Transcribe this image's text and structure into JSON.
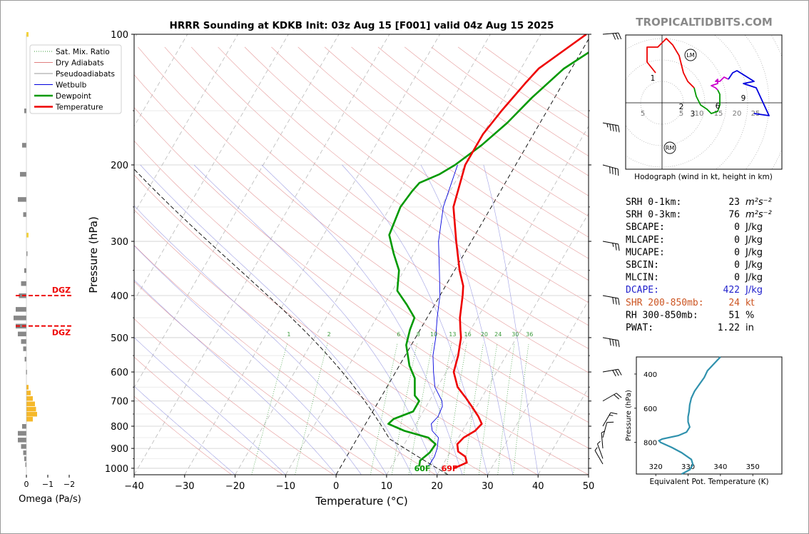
{
  "title": "HRRR Sounding at KDKB Init: 03z Aug 15 [F001] valid 04z Aug 15 2025",
  "watermark": "TROPICALTIDBITS.COM",
  "chart_data": [
    {
      "type": "skew-t",
      "xlabel": "Temperature (°C)",
      "ylabel": "Pressure (hPa)",
      "xlim": [
        -40,
        50
      ],
      "ylim": [
        1035,
        100
      ],
      "x_ticks": [
        -40,
        -30,
        -20,
        -10,
        0,
        10,
        20,
        30,
        40,
        50
      ],
      "y_ticks": [
        100,
        200,
        300,
        400,
        500,
        600,
        700,
        800,
        900,
        1000
      ],
      "legend_position": "upper-left",
      "legend": [
        {
          "label": "Sat. Mix. Ratio",
          "color": "#3a9a3a"
        },
        {
          "label": "Dry Adiabats",
          "color": "#e08080"
        },
        {
          "label": "Pseudoadiabats",
          "color": "#9a9a9a"
        },
        {
          "label": "Wetbulb",
          "color": "#0000dd"
        },
        {
          "label": "Dewpoint",
          "color": "#009900"
        },
        {
          "label": "Temperature",
          "color": "#ee0000"
        }
      ],
      "mixing_ratio_labels": [
        "1",
        "2",
        "6",
        "8",
        "10",
        "13",
        "16",
        "20",
        "24",
        "30",
        "36"
      ],
      "surface_dewpoint_label": "60F",
      "surface_temperature_label": "69F",
      "series": [
        {
          "name": "Temperature",
          "points": [
            [
              1000,
              22.6
            ],
            [
              970,
              24.5
            ],
            [
              940,
              23.5
            ],
            [
              915,
              21.5
            ],
            [
              880,
              20.5
            ],
            [
              850,
              21.0
            ],
            [
              820,
              22.5
            ],
            [
              790,
              23.0
            ],
            [
              760,
              21.5
            ],
            [
              720,
              19.0
            ],
            [
              690,
              17.0
            ],
            [
              650,
              14.0
            ],
            [
              600,
              11.5
            ],
            [
              550,
              10.5
            ],
            [
              500,
              9.0
            ],
            [
              480,
              8.0
            ],
            [
              450,
              6.5
            ],
            [
              400,
              4.5
            ],
            [
              380,
              3.5
            ],
            [
              350,
              1.0
            ],
            [
              300,
              -3.0
            ],
            [
              250,
              -7.5
            ],
            [
              200,
              -10.0
            ],
            [
              170,
              -10.0
            ],
            [
              150,
              -9.0
            ],
            [
              130,
              -7.5
            ],
            [
              120,
              -6.5
            ],
            [
              100,
              -1.0
            ]
          ]
        },
        {
          "name": "Dewpoint",
          "points": [
            [
              990,
              15.5
            ],
            [
              960,
              15.0
            ],
            [
              920,
              16.0
            ],
            [
              880,
              16.2
            ],
            [
              850,
              14.0
            ],
            [
              820,
              8.5
            ],
            [
              790,
              4.5
            ],
            [
              770,
              5.0
            ],
            [
              740,
              8.0
            ],
            [
              700,
              8.0
            ],
            [
              680,
              6.5
            ],
            [
              620,
              4.5
            ],
            [
              580,
              2.0
            ],
            [
              520,
              -1.0
            ],
            [
              480,
              -2.0
            ],
            [
              450,
              -2.5
            ],
            [
              420,
              -5.5
            ],
            [
              390,
              -9.0
            ],
            [
              350,
              -11.0
            ],
            [
              320,
              -14.0
            ],
            [
              290,
              -17.0
            ],
            [
              250,
              -18.0
            ],
            [
              230,
              -17.5
            ],
            [
              220,
              -17.0
            ],
            [
              210,
              -14.0
            ],
            [
              200,
              -12.0
            ],
            [
              180,
              -9.0
            ],
            [
              160,
              -6.5
            ],
            [
              140,
              -4.5
            ],
            [
              120,
              -1.5
            ],
            [
              100,
              5.0
            ]
          ]
        },
        {
          "name": "Wetbulb",
          "points": [
            [
              990,
              17.3
            ],
            [
              940,
              17.4
            ],
            [
              900,
              17.0
            ],
            [
              850,
              16.0
            ],
            [
              820,
              14.0
            ],
            [
              790,
              13.0
            ],
            [
              760,
              13.5
            ],
            [
              720,
              13.2
            ],
            [
              700,
              12.5
            ],
            [
              650,
              9.5
            ],
            [
              600,
              7.5
            ],
            [
              550,
              5.5
            ],
            [
              500,
              4.0
            ],
            [
              450,
              2.0
            ],
            [
              400,
              0.0
            ],
            [
              350,
              -3.0
            ],
            [
              300,
              -6.5
            ],
            [
              250,
              -9.5
            ],
            [
              200,
              -11.5
            ]
          ]
        }
      ]
    },
    {
      "type": "hodograph",
      "xlabel": "Hodograph (wind in kt, height in km)",
      "ring_labels": [
        "5",
        "5",
        "10",
        "15",
        "20",
        "25"
      ],
      "height_labels": [
        "1",
        "2",
        "3",
        "6",
        "9"
      ],
      "markers": [
        "LM",
        "RM"
      ],
      "series": [
        {
          "name": "0-3 km",
          "color": "#ee0000",
          "points": [
            [
              -3,
              14
            ],
            [
              -7,
              19
            ],
            [
              -7,
              26
            ],
            [
              -2,
              26
            ],
            [
              2,
              30
            ],
            [
              5,
              27
            ],
            [
              8,
              22
            ],
            [
              10,
              14
            ],
            [
              12,
              10
            ],
            [
              15,
              7
            ]
          ]
        },
        {
          "name": "3-6 km",
          "color": "#009900",
          "points": [
            [
              15,
              7
            ],
            [
              16,
              3
            ],
            [
              18,
              -1
            ],
            [
              21,
              -3
            ],
            [
              23,
              -5
            ],
            [
              26,
              -4
            ],
            [
              27,
              -1
            ],
            [
              27,
              4
            ],
            [
              26,
              6
            ]
          ]
        },
        {
          "name": "6-9 km",
          "color": "#cc00cc",
          "points": [
            [
              26,
              6
            ],
            [
              25,
              7
            ],
            [
              23,
              8
            ],
            [
              26,
              9
            ],
            [
              26,
              11
            ],
            [
              25,
              10
            ],
            [
              27,
              10
            ],
            [
              29,
              12
            ],
            [
              31,
              11
            ]
          ]
        },
        {
          "name": "9-12 km",
          "color": "#0000dd",
          "points": [
            [
              31,
              11
            ],
            [
              33,
              14
            ],
            [
              35,
              15
            ],
            [
              43,
              10
            ],
            [
              38,
              9
            ],
            [
              44,
              7
            ],
            [
              50,
              -6
            ],
            [
              43,
              -5
            ]
          ]
        }
      ]
    },
    {
      "type": "line",
      "xlabel": "Equivalent Pot. Temperature (K)",
      "ylabel": "Pressure (hPa)",
      "xlim": [
        314,
        359
      ],
      "ylim": [
        985,
        300
      ],
      "x_ticks": [
        320,
        330,
        340,
        350
      ],
      "y_ticks": [
        400,
        600,
        800
      ],
      "series": [
        {
          "name": "Equivalent Pot. Temperature",
          "color": "#2f91ad",
          "points": [
            [
              985,
              328
            ],
            [
              960,
              330.5
            ],
            [
              930,
              331.5
            ],
            [
              900,
              331
            ],
            [
              860,
              328
            ],
            [
              830,
              325
            ],
            [
              800,
              321.5
            ],
            [
              790,
              321
            ],
            [
              780,
              322
            ],
            [
              760,
              327
            ],
            [
              740,
              329.5
            ],
            [
              710,
              330.5
            ],
            [
              680,
              330
            ],
            [
              650,
              330
            ],
            [
              620,
              330.3
            ],
            [
              580,
              330.5
            ],
            [
              540,
              331
            ],
            [
              500,
              332
            ],
            [
              460,
              333.5
            ],
            [
              420,
              335
            ],
            [
              380,
              336
            ],
            [
              350,
              337.5
            ],
            [
              320,
              339
            ],
            [
              300,
              340
            ]
          ]
        }
      ]
    },
    {
      "type": "bar",
      "xlabel": "Omega (Pa/s)",
      "xlim": [
        1,
        -2
      ],
      "x_ticks": [
        "0",
        "−1",
        "−2"
      ],
      "dgz_label": "DGZ",
      "dgz_levels": [
        400,
        470
      ],
      "bars": [
        [
          100,
          -0.1
        ],
        [
          150,
          0.1
        ],
        [
          180,
          0.2
        ],
        [
          210,
          0.3
        ],
        [
          240,
          0.4
        ],
        [
          260,
          0.15
        ],
        [
          290,
          -0.1
        ],
        [
          320,
          -0.05
        ],
        [
          350,
          0.1
        ],
        [
          375,
          0.25
        ],
        [
          400,
          0.35
        ],
        [
          430,
          0.5
        ],
        [
          450,
          0.6
        ],
        [
          470,
          0.5
        ],
        [
          490,
          0.4
        ],
        [
          510,
          0.25
        ],
        [
          530,
          0.15
        ],
        [
          560,
          0.08
        ],
        [
          600,
          0.02
        ],
        [
          650,
          -0.1
        ],
        [
          670,
          -0.2
        ],
        [
          690,
          -0.3
        ],
        [
          710,
          -0.4
        ],
        [
          730,
          -0.45
        ],
        [
          750,
          -0.5
        ],
        [
          770,
          -0.3
        ],
        [
          800,
          0.2
        ],
        [
          830,
          0.4
        ],
        [
          860,
          0.4
        ],
        [
          890,
          0.25
        ],
        [
          920,
          0.15
        ],
        [
          950,
          0.1
        ],
        [
          980,
          0.05
        ]
      ]
    }
  ],
  "stats": [
    {
      "label": "SRH 0-1km:",
      "value": "23",
      "unit": "m²s⁻²",
      "color": "#000000"
    },
    {
      "label": "SRH 0-3km:",
      "value": "76",
      "unit": "m²s⁻²",
      "color": "#000000"
    },
    {
      "label": "SBCAPE:",
      "value": "0",
      "unit": "J/kg",
      "color": "#000000"
    },
    {
      "label": "MLCAPE:",
      "value": "0",
      "unit": "J/kg",
      "color": "#000000"
    },
    {
      "label": "MUCAPE:",
      "value": "0",
      "unit": "J/kg",
      "color": "#000000"
    },
    {
      "label": "SBCIN:",
      "value": "0",
      "unit": "J/kg",
      "color": "#000000"
    },
    {
      "label": "MLCIN:",
      "value": "0",
      "unit": "J/kg",
      "color": "#000000"
    },
    {
      "label": "DCAPE:",
      "value": "422",
      "unit": "J/kg",
      "color": "#2222cc"
    },
    {
      "label": "SHR 200-850mb:",
      "value": "24",
      "unit": "kt",
      "color": "#cc5522"
    },
    {
      "label": "RH 300-850mb:",
      "value": "51",
      "unit": "%",
      "color": "#000000"
    },
    {
      "label": "PWAT:",
      "value": "1.22",
      "unit": "in",
      "color": "#000000"
    }
  ],
  "wind_barbs": [
    [
      100,
      265,
      30
    ],
    [
      160,
      280,
      45
    ],
    [
      200,
      285,
      40
    ],
    [
      300,
      280,
      25
    ],
    [
      400,
      280,
      30
    ],
    [
      500,
      280,
      40
    ],
    [
      600,
      260,
      30
    ],
    [
      700,
      240,
      20
    ],
    [
      800,
      210,
      15
    ],
    [
      850,
      195,
      10
    ],
    [
      900,
      175,
      8
    ],
    [
      950,
      160,
      5
    ],
    [
      1000,
      150,
      5
    ]
  ]
}
